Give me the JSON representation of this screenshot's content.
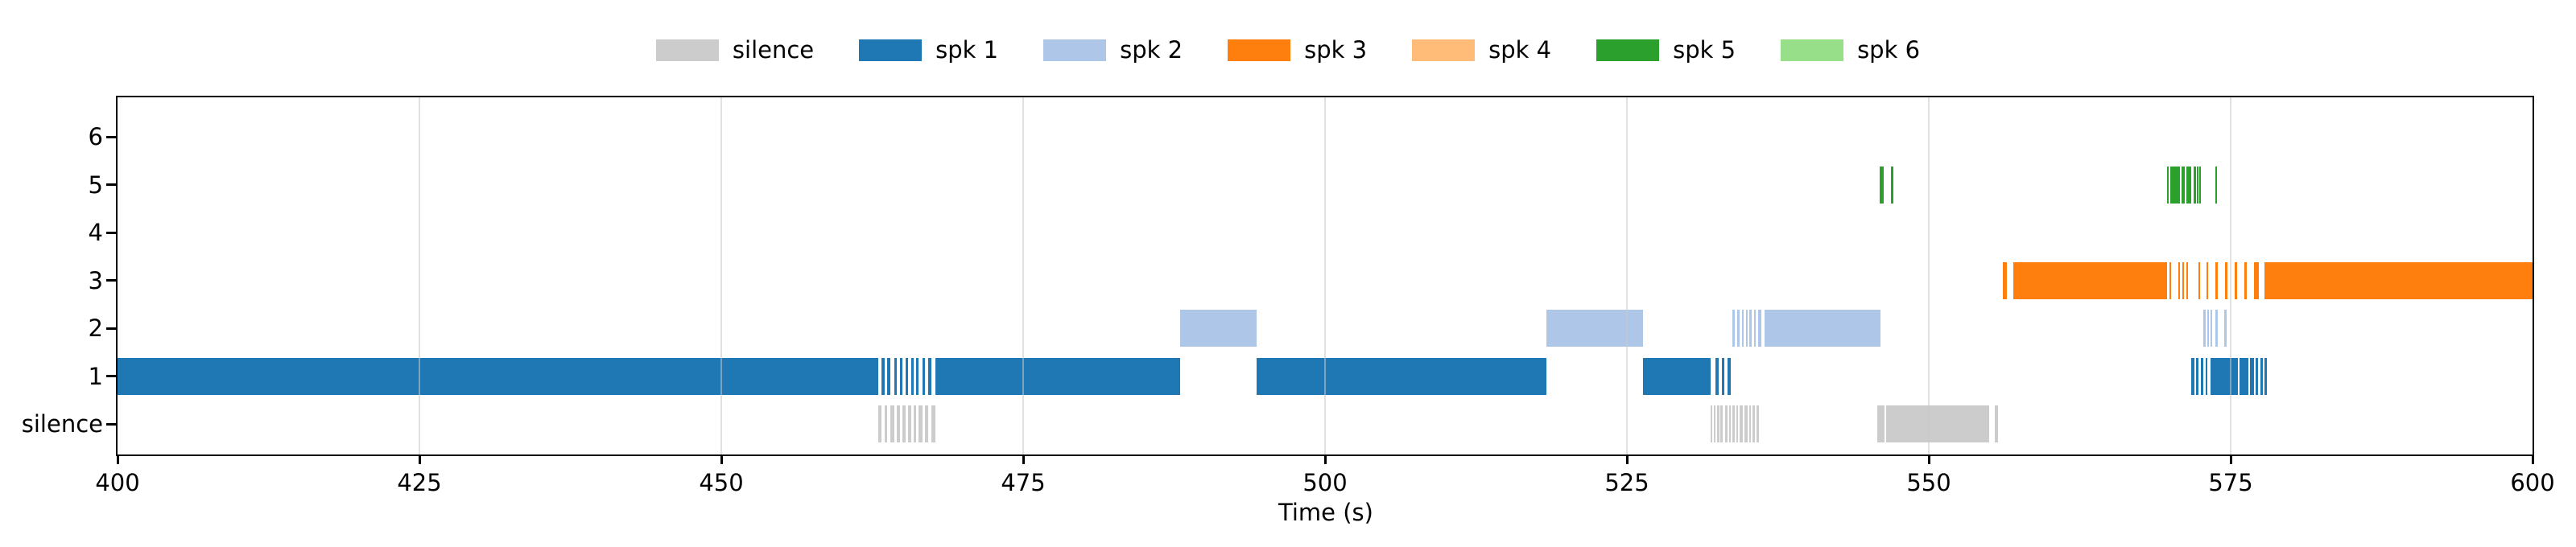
{
  "legend": {
    "entries": [
      {
        "label": "silence",
        "color": "#cccccc"
      },
      {
        "label": "spk 1",
        "color": "#1f77b4"
      },
      {
        "label": "spk 2",
        "color": "#aec7e8"
      },
      {
        "label": "spk 3",
        "color": "#ff7f0e"
      },
      {
        "label": "spk 4",
        "color": "#ffbb78"
      },
      {
        "label": "spk 5",
        "color": "#2ca02c"
      },
      {
        "label": "spk 6",
        "color": "#98df8a"
      }
    ]
  },
  "axes": {
    "xlabel": "Time (s)",
    "xlim": [
      400,
      600
    ],
    "xticks": [
      400,
      425,
      450,
      475,
      500,
      525,
      550,
      575,
      600
    ],
    "ytick_labels_top_to_bottom": [
      "6",
      "5",
      "4",
      "3",
      "2",
      "1",
      "silence"
    ],
    "grid": "vertical light-gray lines at 25 s intervals, drawn over bars"
  },
  "chart_data": {
    "type": "bar",
    "subtype": "horizontal broken-bar speaker-diarization timeline (one lane per speaker)",
    "title": "",
    "xlabel": "Time (s)",
    "xlim": [
      400,
      600
    ],
    "legend_position": "top center, outside axes",
    "rows_top_to_bottom": [
      "6",
      "5",
      "4",
      "3",
      "2",
      "1",
      "silence"
    ],
    "series": [
      {
        "name": "spk 6",
        "row": "6",
        "color": "#98df8a",
        "segments": []
      },
      {
        "name": "spk 5",
        "row": "5",
        "color": "#2ca02c",
        "segments": [
          [
            545.95,
            546.25
          ],
          [
            546.85,
            547.05
          ],
          [
            569.7,
            569.85
          ],
          [
            570.0,
            570.8
          ],
          [
            570.9,
            571.2
          ],
          [
            571.3,
            571.7
          ],
          [
            571.95,
            572.1
          ],
          [
            572.2,
            572.3
          ],
          [
            572.4,
            572.5
          ],
          [
            573.7,
            573.85
          ]
        ]
      },
      {
        "name": "spk 4",
        "row": "4",
        "color": "#ffbb78",
        "segments": []
      },
      {
        "name": "spk 3",
        "row": "3",
        "color": "#ff7f0e",
        "segments": [
          [
            556.1,
            556.45
          ],
          [
            557.0,
            569.7
          ],
          [
            569.9,
            570.0
          ],
          [
            570.65,
            570.8
          ],
          [
            571.0,
            571.15
          ],
          [
            571.3,
            571.45
          ],
          [
            572.3,
            572.45
          ],
          [
            573.0,
            573.15
          ],
          [
            573.7,
            573.9
          ],
          [
            574.5,
            574.75
          ],
          [
            575.3,
            575.55
          ],
          [
            576.1,
            576.35
          ],
          [
            576.9,
            577.3
          ],
          [
            577.8,
            600.0
          ]
        ]
      },
      {
        "name": "spk 2",
        "row": "2",
        "color": "#aec7e8",
        "segments": [
          [
            488.0,
            494.3
          ],
          [
            518.3,
            526.3
          ],
          [
            533.7,
            533.9
          ],
          [
            534.1,
            534.3
          ],
          [
            534.5,
            534.65
          ],
          [
            534.85,
            535.0
          ],
          [
            535.15,
            535.3
          ],
          [
            535.5,
            535.65
          ],
          [
            535.85,
            536.1
          ],
          [
            536.4,
            546.0
          ],
          [
            572.7,
            572.9
          ],
          [
            573.05,
            573.2
          ],
          [
            573.3,
            573.4
          ],
          [
            573.75,
            573.9
          ],
          [
            574.45,
            574.65
          ]
        ]
      },
      {
        "name": "spk 1",
        "row": "1",
        "color": "#1f77b4",
        "segments": [
          [
            400.0,
            463.0
          ],
          [
            463.25,
            463.5
          ],
          [
            463.75,
            464.0
          ],
          [
            464.3,
            464.55
          ],
          [
            464.8,
            465.0
          ],
          [
            465.25,
            465.45
          ],
          [
            465.7,
            465.9
          ],
          [
            466.15,
            466.35
          ],
          [
            466.65,
            466.85
          ],
          [
            467.15,
            467.4
          ],
          [
            467.75,
            488.0
          ],
          [
            494.3,
            518.3
          ],
          [
            526.3,
            531.9
          ],
          [
            532.3,
            532.6
          ],
          [
            532.85,
            533.05
          ],
          [
            533.3,
            533.6
          ],
          [
            571.7,
            572.0
          ],
          [
            572.15,
            572.35
          ],
          [
            572.5,
            572.7
          ],
          [
            572.9,
            573.05
          ],
          [
            573.35,
            575.6
          ],
          [
            575.75,
            576.45
          ],
          [
            576.6,
            576.9
          ],
          [
            577.05,
            577.25
          ],
          [
            577.45,
            577.65
          ],
          [
            577.8,
            578.0
          ]
        ]
      },
      {
        "name": "silence",
        "row": "silence",
        "color": "#cccccc",
        "segments": [
          [
            463.0,
            463.25
          ],
          [
            463.5,
            463.75
          ],
          [
            464.0,
            464.3
          ],
          [
            464.55,
            464.8
          ],
          [
            465.0,
            465.25
          ],
          [
            465.45,
            465.7
          ],
          [
            465.9,
            466.15
          ],
          [
            466.35,
            466.65
          ],
          [
            466.85,
            467.15
          ],
          [
            467.4,
            467.75
          ],
          [
            531.9,
            532.05
          ],
          [
            532.2,
            532.3
          ],
          [
            532.45,
            532.65
          ],
          [
            532.75,
            532.9
          ],
          [
            533.1,
            533.3
          ],
          [
            533.45,
            533.6
          ],
          [
            533.75,
            533.9
          ],
          [
            534.05,
            534.15
          ],
          [
            534.3,
            534.6
          ],
          [
            534.75,
            535.0
          ],
          [
            535.1,
            535.2
          ],
          [
            535.4,
            535.6
          ],
          [
            535.7,
            535.95
          ],
          [
            545.7,
            546.3
          ],
          [
            546.45,
            555.0
          ],
          [
            555.45,
            555.7
          ]
        ]
      }
    ]
  }
}
